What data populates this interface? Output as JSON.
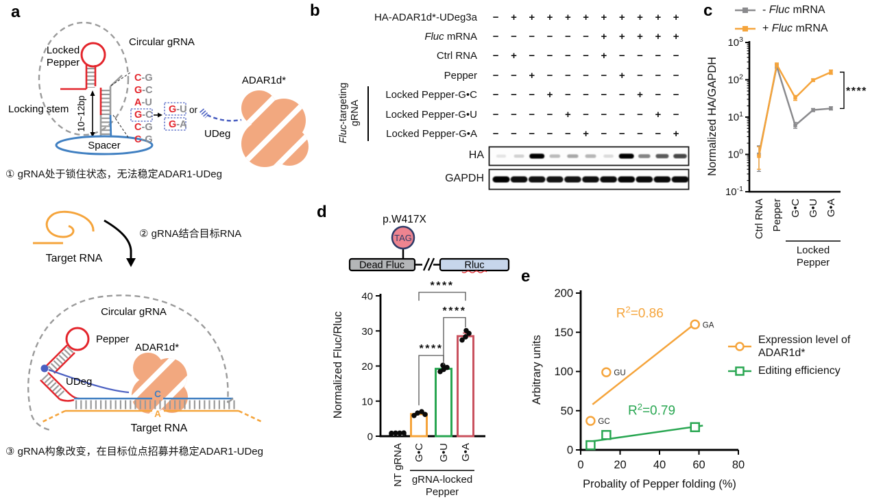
{
  "colors": {
    "orange": "#F5A43B",
    "gray_series": "#8A8A8D",
    "green": "#28A651",
    "crimson": "#C9515E",
    "red": "#E3242B",
    "blue_strand": "#3F7FC1",
    "udeg_blue": "#4A5FC1",
    "blob_salmon": "#F2A87F",
    "pink_codon": "#EE8490",
    "navy": "#2D3A67",
    "box_gray": "#B4B6B8",
    "box_lightblue": "#C7D6EB",
    "dash_gray": "#9a9a9a"
  },
  "panel_a": {
    "label": "a",
    "circular_grna": "Circular gRNA",
    "locked_line1": "Locked",
    "locked_line2": "Pepper",
    "locking_stem": "Locking stem",
    "bp_length": "10~12bp",
    "spacer": "Spacer",
    "bp": [
      {
        "l": "C",
        "r": "-G"
      },
      {
        "l": "G",
        "r": "-C"
      },
      {
        "l": "A",
        "r": "-U"
      },
      {
        "l": "G",
        "r": "-C"
      },
      {
        "l": "C",
        "r": "-G"
      },
      {
        "l": "C",
        "r": "-G"
      }
    ],
    "mutant_top": {
      "l": "G",
      "r": "-U"
    },
    "mutant_bottom": {
      "l": "G",
      "r": "-A"
    },
    "or_text": "or",
    "adar1": "ADAR1d*",
    "udeg1": "UDeg",
    "step1": "① gRNA处于锁住状态，无法稳定ADAR1-UDeg",
    "target_rna1": "Target RNA",
    "step2": "② gRNA结合目标RNA",
    "circular_grna2": "Circular gRNA",
    "pepper2": "Pepper",
    "adar2": "ADAR1d*",
    "udeg2": "UDeg",
    "base_c": "C",
    "base_a": "A",
    "target_rna2": "Target RNA",
    "step3": "③ gRNA构象改变，在目标位点招募并稳定ADAR1-UDeg"
  },
  "panel_b": {
    "label": "b",
    "rows": [
      {
        "parts": [
          {
            "t": "HA-ADAR1d*-UDeg3a"
          }
        ],
        "v": [
          "−",
          "+",
          "+",
          "+",
          "+",
          "+",
          "+",
          "+",
          "+",
          "+",
          "+"
        ]
      },
      {
        "parts": [
          {
            "t": "Fluc",
            "i": true
          },
          {
            "t": " mRNA"
          }
        ],
        "v": [
          "−",
          "−",
          "−",
          "−",
          "−",
          "−",
          "+",
          "+",
          "+",
          "+",
          "+"
        ]
      },
      {
        "parts": [
          {
            "t": "Ctrl RNA"
          }
        ],
        "v": [
          "−",
          "+",
          "−",
          "−",
          "−",
          "−",
          "+",
          "−",
          "−",
          "−",
          "−"
        ]
      },
      {
        "parts": [
          {
            "t": "Pepper"
          }
        ],
        "v": [
          "−",
          "−",
          "+",
          "−",
          "−",
          "−",
          "−",
          "+",
          "−",
          "−",
          "−"
        ]
      },
      {
        "parts": [
          {
            "t": "Locked Pepper-G•C"
          }
        ],
        "v": [
          "−",
          "−",
          "−",
          "+",
          "−",
          "−",
          "−",
          "−",
          "+",
          "−",
          "−"
        ]
      },
      {
        "parts": [
          {
            "t": "Locked Pepper-G•U"
          }
        ],
        "v": [
          "−",
          "−",
          "−",
          "−",
          "+",
          "−",
          "−",
          "−",
          "−",
          "+",
          "−"
        ]
      },
      {
        "parts": [
          {
            "t": "Locked Pepper-G•A"
          }
        ],
        "v": [
          "−",
          "−",
          "−",
          "−",
          "−",
          "+",
          "−",
          "−",
          "−",
          "−",
          "+"
        ]
      }
    ],
    "side_label_line1_parts": [
      {
        "t": "Fluc",
        "i": true
      },
      {
        "t": "-targeting"
      }
    ],
    "side_label_line2": "gRNA",
    "blots": [
      {
        "label": "HA",
        "bands": [
          0.04,
          0.12,
          1.0,
          0.22,
          0.3,
          0.24,
          0.08,
          1.0,
          0.45,
          0.62,
          0.7
        ]
      },
      {
        "label": "GAPDH",
        "bands": [
          1.0,
          0.95,
          0.93,
          0.92,
          0.92,
          0.94,
          0.95,
          0.98,
          0.96,
          0.96,
          0.96
        ]
      }
    ]
  },
  "panel_c": {
    "label": "c"
  },
  "panel_d": {
    "label": "d",
    "reporter": {
      "mutation": "p.W417X",
      "codon": "TAG",
      "gene1": "Dead Fluc",
      "gene2": "Rluc"
    }
  },
  "panel_e": {
    "label": "e"
  },
  "chart_data": [
    {
      "id": "c",
      "type": "line",
      "ylabel": "Normalized HA/GAPDH",
      "yscale": "log",
      "ylim": [
        0.1,
        1000
      ],
      "categories": [
        "Ctrl RNA",
        "Pepper",
        "G•C",
        "G•U",
        "G•A"
      ],
      "group_label_line1": "Locked",
      "group_label_line2": "Pepper",
      "group_span": [
        2,
        4
      ],
      "series": [
        {
          "name_parts": [
            {
              "t": "- "
            },
            {
              "t": "Fluc",
              "i": true
            },
            {
              "t": " mRNA"
            }
          ],
          "color": "#8A8A8D",
          "values": [
            1.0,
            230,
            6,
            15.5,
            17
          ],
          "err_lo": [
            0.35,
            205,
            5,
            14,
            15.5
          ],
          "err_hi": [
            1.7,
            260,
            7.2,
            17,
            19
          ]
        },
        {
          "name_parts": [
            {
              "t": "+ "
            },
            {
              "t": "Fluc",
              "i": true
            },
            {
              "t": " mRNA"
            }
          ],
          "color": "#F5A43B",
          "values": [
            0.9,
            255,
            33,
            98,
            160
          ],
          "err_lo": [
            0.4,
            235,
            28,
            90,
            140
          ],
          "err_hi": [
            1.6,
            282,
            38,
            106,
            183
          ]
        }
      ],
      "sig": "****"
    },
    {
      "id": "d",
      "type": "bar",
      "ylabel": "Normalized Fluc/Rluc",
      "ylim": [
        0,
        40
      ],
      "yticks": [
        0,
        10,
        20,
        30,
        40
      ],
      "categories": [
        "NT gRNA",
        "G•C",
        "G•U",
        "G•A"
      ],
      "values": [
        0.9,
        6.3,
        19.2,
        28.5
      ],
      "errors": [
        0.1,
        0.5,
        0.6,
        0.9
      ],
      "bar_colors": [
        "#000000",
        "#F5A43B",
        "#28A651",
        "#C9515E"
      ],
      "points": [
        [
          0.85,
          0.9,
          0.9,
          0.95
        ],
        [
          5.9,
          6.6,
          7.0,
          6.2
        ],
        [
          18.4,
          19.0,
          19.6,
          20.2
        ],
        [
          27.4,
          28.3,
          29.3,
          30.1
        ]
      ],
      "group_label_line1": "gRNA-locked",
      "group_label_line2": "Pepper",
      "group_span": [
        1,
        3
      ],
      "sig_brackets": [
        {
          "from": 1,
          "to": 2,
          "y": 23,
          "drop_from": 8.8,
          "drop_to": 20.3,
          "label": "****"
        },
        {
          "from": 2,
          "to": 3,
          "y": 33.8,
          "drop_from": 21.5,
          "drop_to": 31,
          "label": "****"
        },
        {
          "from": 1,
          "to": 3,
          "y": 41,
          "drop_from": 38.6,
          "drop_to": 38.6,
          "label": "****"
        }
      ]
    },
    {
      "id": "e",
      "type": "scatter",
      "xlabel": "Probality of Pepper folding (%)",
      "ylabel": "Arbitrary units",
      "xlim": [
        0,
        80
      ],
      "ylim": [
        0,
        200
      ],
      "xticks": [
        0,
        20,
        40,
        60,
        80
      ],
      "yticks": [
        0,
        50,
        100,
        150,
        200
      ],
      "series": [
        {
          "name_lines": [
            "Expression level of",
            "ADAR1d*"
          ],
          "color": "#F5A43B",
          "marker": "circle",
          "points": [
            {
              "x": 5,
              "y": 37,
              "label": "GC"
            },
            {
              "x": 13,
              "y": 99,
              "label": "GU"
            },
            {
              "x": 58,
              "y": 160,
              "label": "GA"
            }
          ],
          "fit_line": {
            "x1": 6,
            "y1": 58,
            "x2": 58,
            "y2": 161
          },
          "r2": {
            "base": "R",
            "sup": "2",
            "rest": "=0.86"
          },
          "r2_pos": [
            30,
            169
          ]
        },
        {
          "name_lines": [
            "Editing efficiency"
          ],
          "color": "#28A651",
          "marker": "square",
          "points": [
            {
              "x": 5,
              "y": 6
            },
            {
              "x": 13,
              "y": 19
            },
            {
              "x": 58,
              "y": 29
            }
          ],
          "fit_line": {
            "x1": 3,
            "y1": 10,
            "x2": 62,
            "y2": 31
          },
          "r2": {
            "base": "R",
            "sup": "2",
            "rest": "=0.79"
          },
          "r2_pos": [
            36,
            45
          ]
        }
      ]
    }
  ]
}
